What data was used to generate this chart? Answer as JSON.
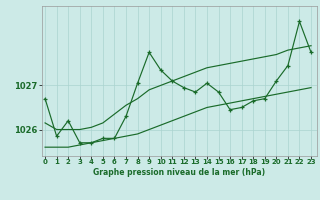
{
  "title": "Graphe pression niveau de la mer (hPa)",
  "bg_color": "#cceae7",
  "grid_color": "#aad4d0",
  "line_color": "#1a6b2a",
  "x_ticks": [
    0,
    1,
    2,
    3,
    4,
    5,
    6,
    7,
    8,
    9,
    10,
    11,
    12,
    13,
    14,
    15,
    16,
    17,
    18,
    19,
    20,
    21,
    22,
    23
  ],
  "y_ticks": [
    1026,
    1027
  ],
  "ylim": [
    1025.4,
    1028.8
  ],
  "xlim": [
    -0.3,
    23.5
  ],
  "series_zigzag": [
    1026.7,
    1025.85,
    1026.2,
    1025.7,
    1025.7,
    1025.8,
    1025.8,
    1026.3,
    1027.05,
    1027.75,
    1027.35,
    1027.1,
    1026.95,
    1026.85,
    1027.05,
    1026.85,
    1026.45,
    1026.5,
    1026.65,
    1026.7,
    1027.1,
    1027.45,
    1028.45,
    1027.75
  ],
  "series_upper": [
    1026.15,
    1026.0,
    1026.0,
    1026.0,
    1026.05,
    1026.15,
    1026.35,
    1026.55,
    1026.7,
    1026.9,
    1027.0,
    1027.1,
    1027.2,
    1027.3,
    1027.4,
    1027.45,
    1027.5,
    1027.55,
    1027.6,
    1027.65,
    1027.7,
    1027.8,
    1027.85,
    1027.9
  ],
  "series_lower": [
    1025.6,
    1025.6,
    1025.6,
    1025.65,
    1025.7,
    1025.75,
    1025.8,
    1025.85,
    1025.9,
    1026.0,
    1026.1,
    1026.2,
    1026.3,
    1026.4,
    1026.5,
    1026.55,
    1026.6,
    1026.65,
    1026.7,
    1026.75,
    1026.8,
    1026.85,
    1026.9,
    1026.95
  ]
}
